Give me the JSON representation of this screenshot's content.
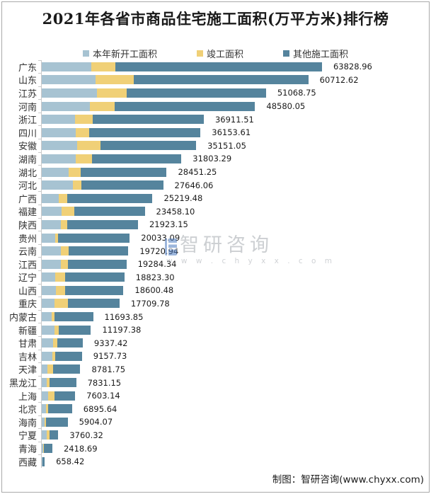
{
  "title": "2021年各省市商品住宅施工面积(万平方米)排行榜",
  "legend": {
    "items": [
      {
        "label": "本年新开工面积",
        "color": "#A7C3D2"
      },
      {
        "label": "竣工面积",
        "color": "#F0D077"
      },
      {
        "label": "其他施工面积",
        "color": "#55849D"
      }
    ]
  },
  "watermark": {
    "brand": "智研咨询",
    "url": "www.chyxx.com",
    "logo_color": "#4d7cc0"
  },
  "credit": "制图：智研咨询(www.chyxx.com)",
  "chart_data": {
    "type": "bar",
    "orientation": "horizontal",
    "stacked": true,
    "title": "2021年各省市商品住宅施工面积(万平方米)排行榜",
    "unit": "万平方米",
    "legend_position": "top",
    "grid": false,
    "xlim": [
      0,
      63828.96
    ],
    "categories": [
      "广东",
      "山东",
      "江苏",
      "河南",
      "浙江",
      "四川",
      "安徽",
      "湖南",
      "湖北",
      "河北",
      "广西",
      "福建",
      "陕西",
      "贵州",
      "云南",
      "江西",
      "辽宁",
      "山西",
      "重庆",
      "内蒙古",
      "新疆",
      "甘肃",
      "吉林",
      "天津",
      "黑龙江",
      "上海",
      "北京",
      "海南",
      "宁夏",
      "青海",
      "西藏"
    ],
    "totals": [
      63828.96,
      60712.62,
      51068.75,
      48580.05,
      36911.51,
      36153.61,
      35151.05,
      31803.29,
      28451.25,
      27646.06,
      25219.48,
      23458.1,
      21923.15,
      20033.09,
      19720.94,
      19284.34,
      18823.3,
      18600.48,
      17709.78,
      11693.85,
      11197.38,
      9337.42,
      9157.73,
      8781.75,
      7831.15,
      7603.14,
      6895.64,
      5904.07,
      3760.32,
      2418.69,
      658.42
    ],
    "total_labels": [
      "63828.96",
      "60712.62",
      "51068.75",
      "48580.05",
      "36911.51",
      "36153.61",
      "35151.05",
      "31803.29",
      "28451.25",
      "27646.06",
      "25219.48",
      "23458.10",
      "21923.15",
      "20033.09",
      "19720.94",
      "19284.34",
      "18823.30",
      "18600.48",
      "17709.78",
      "11693.85",
      "11197.38",
      "9337.42",
      "9157.73",
      "8781.75",
      "7831.15",
      "7603.14",
      "6895.64",
      "5904.07",
      "3760.32",
      "2418.69",
      "658.42"
    ],
    "series": [
      {
        "id": "new-start",
        "name": "本年新开工面积",
        "color": "#A7C3D2",
        "values": [
          11280,
          12270,
          12580,
          10990,
          7540,
          7750,
          8060,
          7790,
          6060,
          7130,
          3880,
          4540,
          4430,
          3030,
          4340,
          4290,
          3120,
          3250,
          2900,
          2250,
          2910,
          2610,
          2400,
          1290,
          1200,
          1520,
          970,
          700,
          1050,
          360,
          160
        ]
      },
      {
        "id": "completed",
        "name": "竣工面积",
        "color": "#F0D077",
        "values": [
          5480,
          8720,
          6770,
          5600,
          4090,
          3120,
          5370,
          3680,
          2810,
          1840,
          1940,
          2810,
          1400,
          650,
          1840,
          1710,
          2150,
          2060,
          3010,
          650,
          970,
          870,
          650,
          1290,
          540,
          1410,
          540,
          220,
          660,
          180,
          80
        ]
      },
      {
        "id": "other",
        "name": "其他施工面积",
        "color": "#55849D",
        "values": [
          47068.96,
          39722.62,
          31718.75,
          31990.05,
          25281.51,
          25283.61,
          21721.05,
          20333.29,
          19581.25,
          18676.06,
          19399.48,
          16108.1,
          16093.15,
          16353.09,
          13540.94,
          13284.34,
          13553.3,
          13290.48,
          11799.78,
          8793.85,
          7317.38,
          5857.42,
          6107.73,
          6201.75,
          6091.15,
          4673.14,
          5385.64,
          4984.07,
          2050.32,
          1878.69,
          418.42
        ]
      }
    ]
  }
}
